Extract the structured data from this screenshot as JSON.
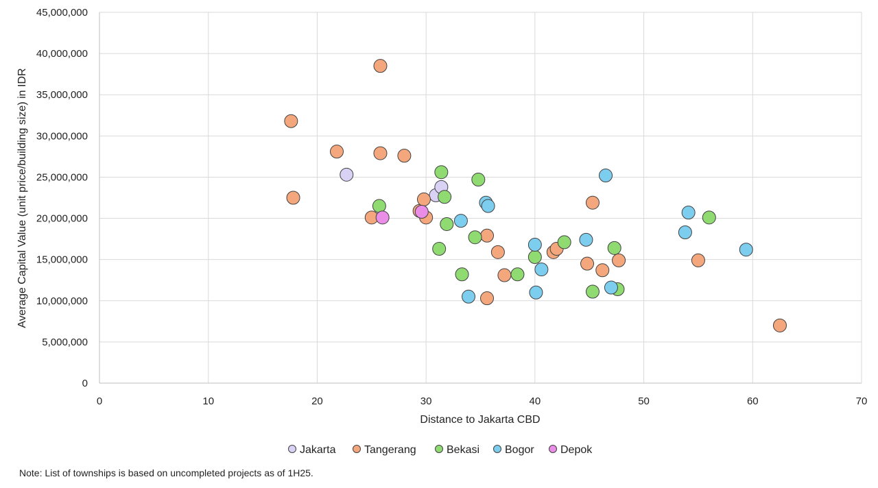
{
  "chart_data": {
    "type": "scatter",
    "title": "",
    "xlabel": "Distance to Jakarta CBD",
    "ylabel": "Average Capital Value (unit price/building size) in IDR",
    "xlim": [
      0,
      70
    ],
    "ylim": [
      0,
      45000000
    ],
    "x_ticks": [
      0,
      10,
      20,
      30,
      40,
      50,
      60,
      70
    ],
    "x_tick_labels": [
      "0",
      "10",
      "20",
      "30",
      "40",
      "50",
      "60",
      "70"
    ],
    "y_ticks": [
      0,
      5000000,
      10000000,
      15000000,
      20000000,
      25000000,
      30000000,
      35000000,
      40000000,
      45000000
    ],
    "y_tick_labels": [
      "0",
      "5,000,000",
      "10,000,000",
      "15,000,000",
      "20,000,000",
      "25,000,000",
      "30,000,000",
      "35,000,000",
      "40,000,000",
      "45,000,000"
    ],
    "grid": true,
    "legend_position": "bottom",
    "series": [
      {
        "name": "Jakarta",
        "color": "#d9d2f5",
        "points": [
          [
            22.7,
            25300000
          ],
          [
            30.9,
            22800000
          ],
          [
            31.4,
            23800000
          ]
        ]
      },
      {
        "name": "Tangerang",
        "color": "#f4a77c",
        "points": [
          [
            17.6,
            31800000
          ],
          [
            17.8,
            22500000
          ],
          [
            21.8,
            28100000
          ],
          [
            25.0,
            20100000
          ],
          [
            25.8,
            38500000
          ],
          [
            25.8,
            27900000
          ],
          [
            28.0,
            27600000
          ],
          [
            29.4,
            20900000
          ],
          [
            29.8,
            22300000
          ],
          [
            30.0,
            20100000
          ],
          [
            35.6,
            17900000
          ],
          [
            35.6,
            10300000
          ],
          [
            36.6,
            15900000
          ],
          [
            37.2,
            13100000
          ],
          [
            41.7,
            15900000
          ],
          [
            42.0,
            16300000
          ],
          [
            44.8,
            14500000
          ],
          [
            45.3,
            21900000
          ],
          [
            46.2,
            13700000
          ],
          [
            47.7,
            14900000
          ],
          [
            55.0,
            14900000
          ],
          [
            62.5,
            7000000
          ]
        ]
      },
      {
        "name": "Bekasi",
        "color": "#8fdb72",
        "points": [
          [
            25.7,
            21500000
          ],
          [
            31.2,
            16300000
          ],
          [
            31.4,
            25600000
          ],
          [
            31.7,
            22600000
          ],
          [
            31.9,
            19300000
          ],
          [
            33.3,
            13200000
          ],
          [
            34.5,
            17700000
          ],
          [
            34.8,
            24700000
          ],
          [
            38.4,
            13200000
          ],
          [
            40.0,
            15300000
          ],
          [
            42.7,
            17100000
          ],
          [
            45.3,
            11100000
          ],
          [
            47.3,
            16400000
          ],
          [
            47.6,
            11400000
          ],
          [
            56.0,
            20100000
          ]
        ]
      },
      {
        "name": "Bogor",
        "color": "#7ccdee",
        "points": [
          [
            33.2,
            19700000
          ],
          [
            33.9,
            10500000
          ],
          [
            35.5,
            21900000
          ],
          [
            35.7,
            21500000
          ],
          [
            40.0,
            16800000
          ],
          [
            40.1,
            11000000
          ],
          [
            40.6,
            13800000
          ],
          [
            44.7,
            17400000
          ],
          [
            46.5,
            25200000
          ],
          [
            47.0,
            11600000
          ],
          [
            53.8,
            18300000
          ],
          [
            54.1,
            20700000
          ],
          [
            59.4,
            16200000
          ]
        ]
      },
      {
        "name": "Depok",
        "color": "#e98de6",
        "points": [
          [
            26.0,
            20100000
          ],
          [
            29.6,
            20800000
          ]
        ]
      }
    ]
  },
  "note": "Note: List of townships is based on uncompleted projects as of 1H25."
}
